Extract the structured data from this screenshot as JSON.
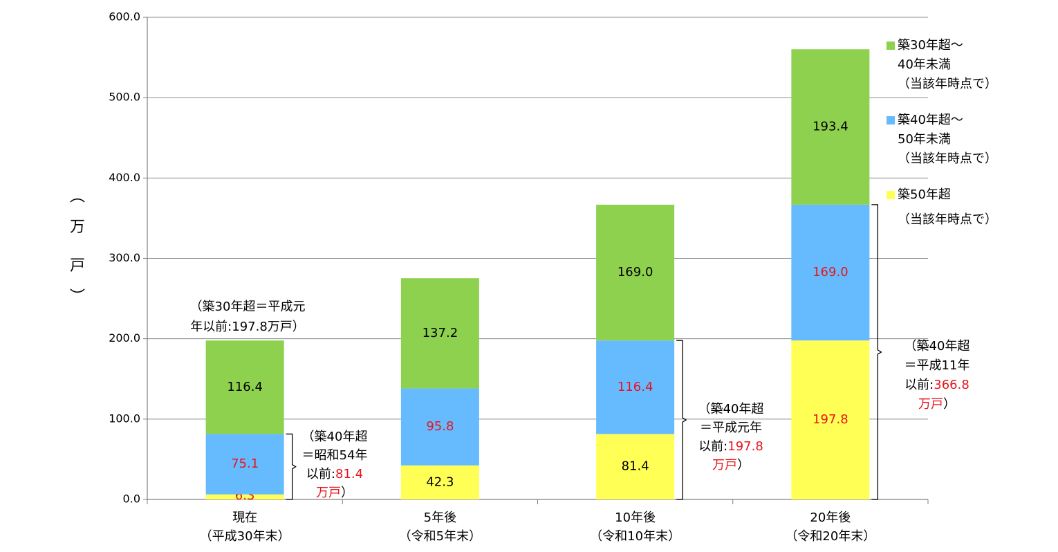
{
  "chart_data": {
    "type": "bar",
    "stacked": true,
    "categories": [
      [
        "現在",
        "（平成30年末）"
      ],
      [
        "5年後",
        "（令和5年末）"
      ],
      [
        "10年後",
        "（令和10年末）"
      ],
      [
        "20年後",
        "（令和20年末）"
      ]
    ],
    "series": [
      {
        "name": [
          "築50年超",
          "（当該年時点で）"
        ],
        "color": "#ffff55",
        "values": [
          6.3,
          42.3,
          81.4,
          197.8
        ],
        "labels": [
          "6.3",
          "42.3",
          "81.4",
          "197.8"
        ],
        "label_colors": [
          "#e8141c",
          "#000000",
          "#000000",
          "#e8141c"
        ]
      },
      {
        "name": [
          "築40年超～",
          "50年未満",
          "（当該年時点で）"
        ],
        "color": "#66bbff",
        "values": [
          75.1,
          95.8,
          116.4,
          169.0
        ],
        "labels": [
          "75.1",
          "95.8",
          "116.4",
          "169.0"
        ],
        "label_colors": [
          "#e8141c",
          "#e8141c",
          "#e8141c",
          "#e8141c"
        ]
      },
      {
        "name": [
          "築30年超～",
          "40年未満",
          "（当該年時点で）"
        ],
        "color": "#8ed14f",
        "values": [
          116.4,
          137.2,
          169.0,
          193.4
        ],
        "labels": [
          "116.4",
          "137.2",
          "169.0",
          "193.4"
        ],
        "label_colors": [
          "#000000",
          "#000000",
          "#000000",
          "#000000"
        ]
      }
    ],
    "ylim": [
      0,
      600
    ],
    "yticks": [
      "0.0",
      "100.0",
      "200.0",
      "300.0",
      "400.0",
      "500.0",
      "600.0"
    ],
    "ylabel_chars": [
      "︵",
      "万",
      "戸",
      "︶"
    ],
    "grid": true,
    "legend_position": "right",
    "annotations": [
      {
        "lines": [
          [
            {
              "t": "（築30年超＝平成元"
            }
          ],
          [
            {
              "t": "年以前:197.8万戸）"
            }
          ]
        ]
      },
      {
        "lines": [
          [
            {
              "t": "（築40年超"
            }
          ],
          [
            {
              "t": "＝昭和54年"
            }
          ],
          [
            {
              "t": "以前:"
            },
            {
              "t": "81.4",
              "red": true
            }
          ],
          [
            {
              "t": "万戸",
              "red": true
            },
            {
              "t": "）"
            }
          ]
        ]
      },
      {
        "lines": [
          [
            {
              "t": "（築40年超"
            }
          ],
          [
            {
              "t": "＝平成元年"
            }
          ],
          [
            {
              "t": "以前:"
            },
            {
              "t": "197.8",
              "red": true
            }
          ],
          [
            {
              "t": "万戸",
              "red": true
            },
            {
              "t": "）"
            }
          ]
        ]
      },
      {
        "lines": [
          [
            {
              "t": "（築40年超"
            }
          ],
          [
            {
              "t": "＝平成11年"
            }
          ],
          [
            {
              "t": "以前:"
            },
            {
              "t": "366.8",
              "red": true
            }
          ],
          [
            {
              "t": "万戸",
              "red": true
            },
            {
              "t": "）"
            }
          ]
        ]
      }
    ]
  }
}
